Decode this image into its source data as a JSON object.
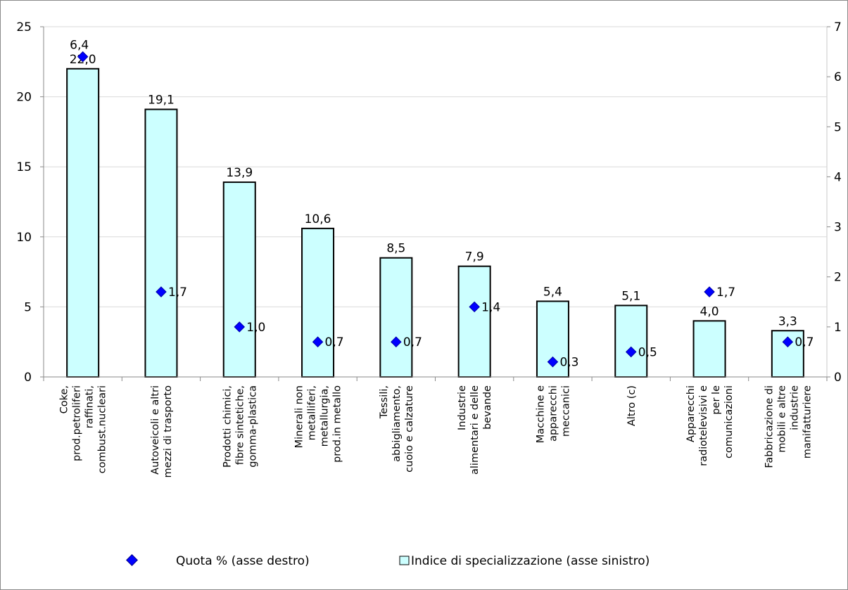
{
  "chart_data": {
    "type": "bar",
    "categories": [
      [
        "Coke,",
        "prod.petroliferi",
        "raffinati,",
        "combust.nucleari"
      ],
      [
        "Autoveicoli e altri",
        "mezzi di trasporto"
      ],
      [
        "Prodotti chimici,",
        "fibre sintetiche,",
        "gomma-plastica"
      ],
      [
        "Minerali non",
        "metalliferi,",
        "metallurgia,",
        "prod.in metallo"
      ],
      [
        "Tessili,",
        "abbigliamento,",
        "cuoio e calzature"
      ],
      [
        "Industrie",
        "alimentari e delle",
        "bevande"
      ],
      [
        "Macchine e",
        "apparecchi",
        "meccanici"
      ],
      [
        "Altro (c)"
      ],
      [
        "Apparecchi",
        "radiotelevisivi e",
        "per le",
        "comunicazioni"
      ],
      [
        "Fabbricazione di",
        "mobili e altre",
        "industrie",
        "manifatturiere"
      ]
    ],
    "series": [
      {
        "name": "Indice di specializzazione (asse sinistro)",
        "type": "bar",
        "axis": "left",
        "values": [
          22.0,
          19.1,
          13.9,
          10.6,
          8.5,
          7.9,
          5.4,
          5.1,
          4.0,
          3.3
        ],
        "labels": [
          "22,0",
          "19,1",
          "13,9",
          "10,6",
          "8,5",
          "7,9",
          "5,4",
          "5,1",
          "4,0",
          "3,3"
        ],
        "color": "#ccffff"
      },
      {
        "name": "Quota % (asse destro)",
        "type": "scatter",
        "axis": "right",
        "values": [
          6.4,
          1.7,
          1.0,
          0.7,
          0.7,
          1.4,
          0.3,
          0.5,
          1.7,
          0.7
        ],
        "labels": [
          "6,4",
          "1,7",
          "1,0",
          "0,7",
          "0,7",
          "1,4",
          "0,3",
          "0,5",
          "1,7",
          "0,7"
        ],
        "color": "#0000ff"
      }
    ],
    "ylim_left": [
      0,
      25
    ],
    "ylim_right": [
      0,
      7
    ],
    "yticks_left": [
      "0",
      "5",
      "10",
      "15",
      "20",
      "25"
    ],
    "yticks_right": [
      "0",
      "1",
      "2",
      "3",
      "4",
      "5",
      "6",
      "7"
    ],
    "grid": true,
    "legend_position": "bottom",
    "legend": [
      "Quota % (asse destro)",
      "Indice di specializzazione (asse sinistro)"
    ]
  }
}
